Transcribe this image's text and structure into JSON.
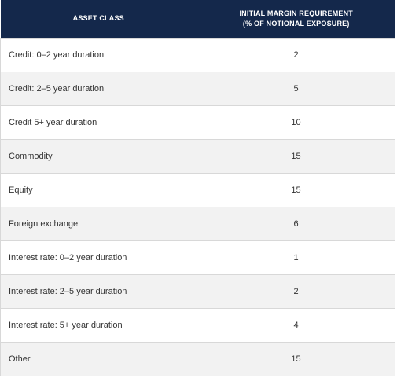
{
  "header": {
    "asset_class": "ASSET CLASS",
    "margin_line1": "INITIAL MARGIN REQUIREMENT",
    "margin_line2": "(% OF NOTIONAL EXPOSURE)"
  },
  "rows": [
    {
      "asset": "Credit: 0–2 year duration",
      "value": "2"
    },
    {
      "asset": "Credit: 2–5 year duration",
      "value": "5"
    },
    {
      "asset": "Credit 5+ year duration",
      "value": "10"
    },
    {
      "asset": "Commodity",
      "value": "15"
    },
    {
      "asset": "Equity",
      "value": "15"
    },
    {
      "asset": "Foreign exchange",
      "value": "6"
    },
    {
      "asset": "Interest rate: 0–2 year duration",
      "value": "1"
    },
    {
      "asset": "Interest rate: 2–5 year duration",
      "value": "2"
    },
    {
      "asset": "Interest rate: 5+ year duration",
      "value": "4"
    },
    {
      "asset": "Other",
      "value": "15"
    }
  ],
  "colors": {
    "header_bg": "#14284b",
    "row_alt_bg": "#f2f2f2",
    "border": "#d8d8d8"
  }
}
